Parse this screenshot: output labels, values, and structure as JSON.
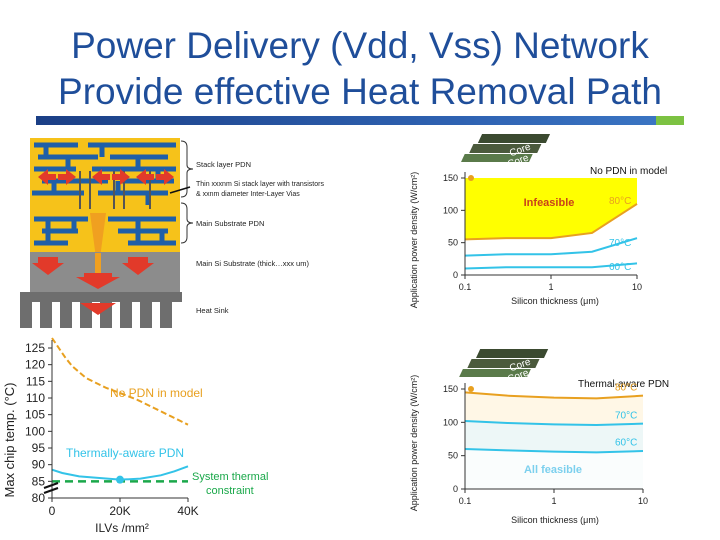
{
  "slide": {
    "title_line1": "Power Delivery (Vdd, Vss) Network",
    "title_line2": "Provide effective Heat Removal Path"
  },
  "colors": {
    "title": "#1f4e9a",
    "rule": "#1b3f86",
    "rule_accent": "#7cc242",
    "chip_yellow": "#f6c21a",
    "pdn_blue": "#1f5fa8",
    "substrate_gray": "#8c8c8c",
    "heat_red": "#e23a2a",
    "infeasible_yellow": "#ffff00",
    "curve_orange": "#e8a020",
    "curve_blue": "#33c3e8",
    "threshold_green": "#1aa84a"
  },
  "stack_diagram": {
    "labels": {
      "stack_pdn": "Stack layer PDN",
      "thin_layer_1": "Thin xxxnm Si stack layer with transistors",
      "thin_layer_2": "& xxnm diameter Inter-Layer Vias",
      "main_substrate_pdn": "Main Substrate PDN",
      "main_si": "Main Si Substrate (thick…xxx um)",
      "heat_sink": "Heat Sink"
    }
  },
  "chip_icon": {
    "label_top": "Core",
    "label_bottom": "Core"
  },
  "chart_data": [
    {
      "type": "line",
      "id": "no-pdn-feasibility",
      "title": "",
      "xlabel": "Silicon thickness (μm)",
      "ylabel": "Application power density (W/cm²)",
      "x_scale": "log",
      "xlim": [
        0.1,
        10
      ],
      "ylim": [
        0,
        150
      ],
      "x_ticks": [
        "0.1",
        "1",
        "10"
      ],
      "y_ticks": [
        "0",
        "50",
        "100",
        "150"
      ],
      "legend": "No PDN in model",
      "region_label": "Infeasible",
      "series": [
        {
          "name": "80°C",
          "x": [
            0.1,
            0.3,
            1,
            3,
            10
          ],
          "values": [
            55,
            57,
            57,
            65,
            110
          ]
        },
        {
          "name": "70°C",
          "x": [
            0.1,
            0.3,
            1,
            3,
            10
          ],
          "values": [
            30,
            32,
            32,
            36,
            57
          ]
        },
        {
          "name": "60°C",
          "x": [
            0.1,
            0.3,
            1,
            3,
            10
          ],
          "values": [
            10,
            12,
            12,
            12,
            18
          ]
        }
      ]
    },
    {
      "type": "line",
      "id": "thermal-aware-feasibility",
      "title": "",
      "xlabel": "Silicon thickness (μm)",
      "ylabel": "Application power density (W/cm²)",
      "x_scale": "log",
      "xlim": [
        0.1,
        10
      ],
      "ylim": [
        0,
        150
      ],
      "x_ticks": [
        "0.1",
        "1",
        "10"
      ],
      "y_ticks": [
        "0",
        "50",
        "100",
        "150"
      ],
      "legend": "Thermal-aware PDN",
      "region_label": "All feasible",
      "series": [
        {
          "name": "80°C",
          "x": [
            0.1,
            0.3,
            1,
            3,
            10
          ],
          "values": [
            145,
            140,
            137,
            136,
            140
          ]
        },
        {
          "name": "70°C",
          "x": [
            0.1,
            0.3,
            1,
            3,
            10
          ],
          "values": [
            102,
            99,
            97,
            96,
            98
          ]
        },
        {
          "name": "60°C",
          "x": [
            0.1,
            0.3,
            1,
            3,
            10
          ],
          "values": [
            60,
            58,
            56,
            55,
            57
          ]
        }
      ]
    },
    {
      "type": "line",
      "id": "chip-temp-vs-ilvs",
      "title": "",
      "xlabel": "ILVs /mm²",
      "ylabel": "Max chip temp. (°C)",
      "xlim": [
        0,
        40000
      ],
      "ylim": [
        80,
        125
      ],
      "x_ticks": [
        "0",
        "20K",
        "40K"
      ],
      "y_ticks": [
        "80",
        "85",
        "90",
        "95",
        "100",
        "105",
        "110",
        "115",
        "120",
        "125"
      ],
      "annotation": "System thermal constraint",
      "threshold": 85,
      "series": [
        {
          "name": "No PDN in model",
          "x": [
            0,
            2000,
            4000,
            6000,
            10000,
            16000,
            20000,
            25000,
            30000,
            35000,
            40000
          ],
          "values": [
            128,
            125,
            122,
            119.5,
            116,
            113,
            111.5,
            109.5,
            107,
            104.5,
            102
          ]
        },
        {
          "name": "Thermally-aware PDN",
          "x": [
            0,
            3000,
            8000,
            14000,
            20000,
            26000,
            32000,
            36000,
            40000
          ],
          "values": [
            88.5,
            87.5,
            86.5,
            86,
            85.5,
            85.8,
            86.8,
            88,
            89.5
          ]
        }
      ]
    }
  ]
}
